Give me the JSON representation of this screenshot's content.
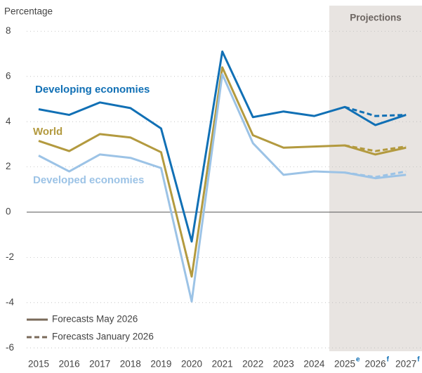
{
  "chart_data": {
    "type": "line",
    "y_axis_label": "Percentage",
    "shaded_region_label": "Projections",
    "categories": [
      "2015",
      "2016",
      "2017",
      "2018",
      "2019",
      "2020",
      "2021",
      "2022",
      "2023",
      "2024",
      "2025",
      "2026",
      "2027"
    ],
    "category_superscripts": [
      null,
      null,
      null,
      null,
      null,
      null,
      null,
      null,
      null,
      null,
      "e",
      "f",
      "f"
    ],
    "shaded_from_category": 10,
    "ylim": [
      -6,
      8
    ],
    "yticks": [
      -6,
      -4,
      -2,
      0,
      2,
      4,
      6,
      8
    ],
    "grid": true,
    "series": [
      {
        "name": "Developing economies",
        "color": "#1170b5",
        "values": [
          4.55,
          4.3,
          4.85,
          4.6,
          3.7,
          -1.3,
          7.1,
          4.2,
          4.45,
          4.25,
          4.65,
          3.85,
          4.3
        ],
        "january_values": [
          null,
          null,
          null,
          null,
          null,
          null,
          null,
          null,
          null,
          null,
          4.65,
          4.25,
          4.3
        ]
      },
      {
        "name": "World",
        "color": "#b39a3f",
        "values": [
          3.15,
          2.7,
          3.45,
          3.3,
          2.65,
          -2.85,
          6.4,
          3.4,
          2.85,
          2.9,
          2.95,
          2.55,
          2.85
        ],
        "january_values": [
          null,
          null,
          null,
          null,
          null,
          null,
          null,
          null,
          null,
          null,
          2.95,
          2.7,
          2.9
        ]
      },
      {
        "name": "Developed economies",
        "color": "#9cc3e6",
        "values": [
          2.5,
          1.8,
          2.55,
          2.4,
          1.95,
          -3.95,
          6.1,
          3.05,
          1.65,
          1.8,
          1.75,
          1.5,
          1.65
        ],
        "january_values": [
          null,
          null,
          null,
          null,
          null,
          null,
          null,
          null,
          null,
          null,
          1.75,
          1.55,
          1.8
        ]
      }
    ],
    "legend": [
      {
        "label": "Forecasts May 2026",
        "style": "solid"
      },
      {
        "label": "Forecasts January 2026",
        "style": "dashed"
      }
    ]
  }
}
